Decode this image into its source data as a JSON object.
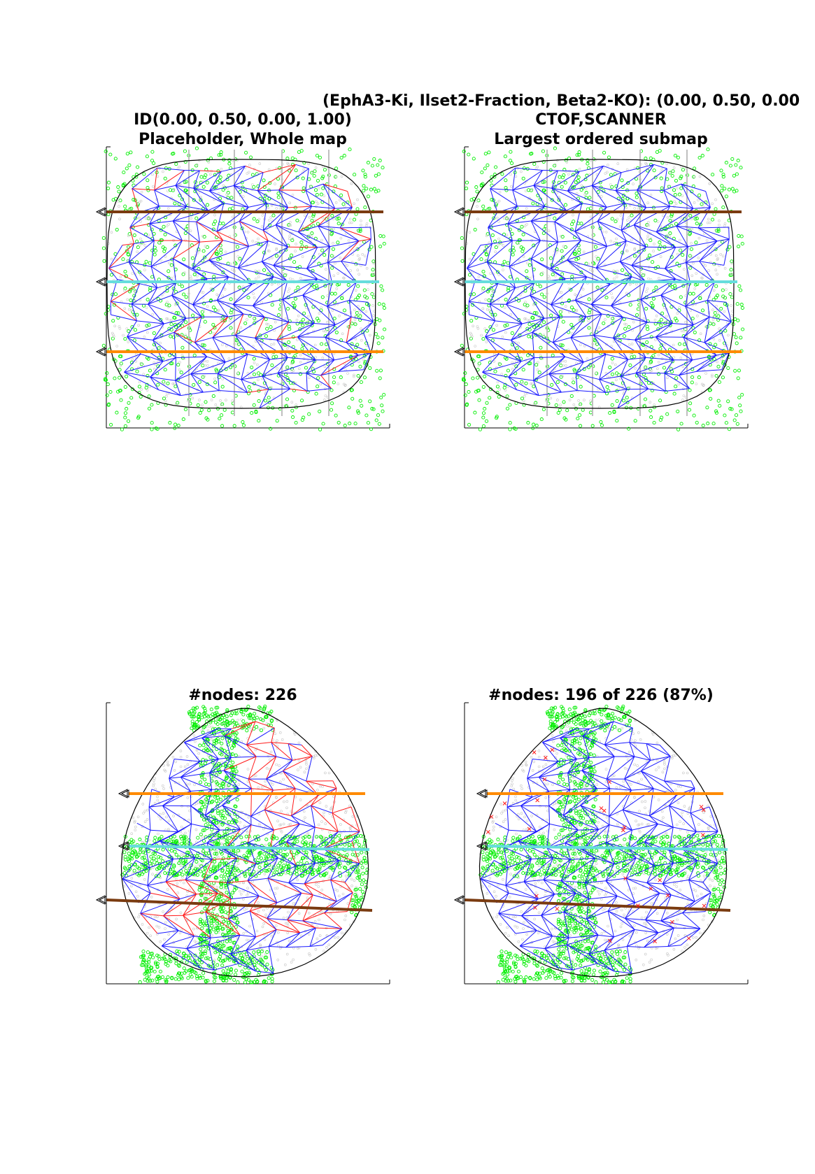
{
  "suptitle": "(EphA3-Ki, Ilset2-Fraction, Beta2-KO): (0.00, 0.50, 0.00",
  "panels": {
    "top_left": {
      "line1": "ID(0.00, 0.50, 0.00, 1.00)",
      "line2": "Placeholder, Whole map"
    },
    "top_right": {
      "line1": "CTOF,SCANNER",
      "line2": "Largest ordered submap"
    },
    "bottom_left": {
      "line1": "#nodes: 226"
    },
    "bottom_right": {
      "line1": "#nodes: 196 of 226 (87%)"
    }
  },
  "colors": {
    "mesh_ordered": "#1a1aff",
    "mesh_disordered": "#ff1a1a",
    "points": "#00ee00",
    "brown_line": "#7a3b10",
    "cyan_line": "#66dddd",
    "orange_line": "#ff8a00",
    "outline": "#000000",
    "grid": "#bfbfbf"
  }
}
